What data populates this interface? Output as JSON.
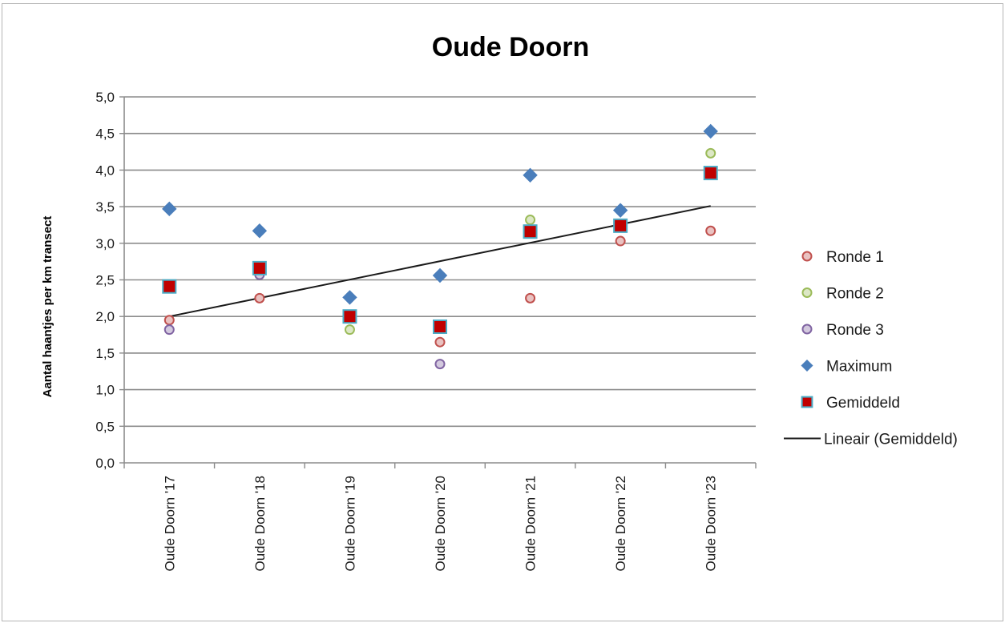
{
  "chart_data": {
    "type": "scatter",
    "title": "Oude Doorn",
    "xlabel": "",
    "ylabel": "Aantal haantjes per km transect",
    "categories": [
      "Oude Doorn '17",
      "Oude Doorn '18",
      "Oude Doorn '19",
      "Oude Doorn '20",
      "Oude Doorn '21",
      "Oude Doorn '22",
      "Oude Doorn '23"
    ],
    "ylim": [
      0,
      5
    ],
    "yticks": [
      "0,0",
      "0,5",
      "1,0",
      "1,5",
      "2,0",
      "2,5",
      "3,0",
      "3,5",
      "4,0",
      "4,5",
      "5,0"
    ],
    "grid": true,
    "legend_position": "right",
    "series": [
      {
        "name": "Ronde 1",
        "marker": "circle",
        "color": "#c0504d",
        "values": [
          1.95,
          2.25,
          null,
          1.65,
          2.25,
          3.03,
          3.17
        ]
      },
      {
        "name": "Ronde 2",
        "marker": "circle",
        "color": "#9bbb59",
        "values": [
          null,
          null,
          1.82,
          null,
          3.32,
          null,
          4.23
        ]
      },
      {
        "name": "Ronde 3",
        "marker": "circle",
        "color": "#8064a2",
        "values": [
          1.82,
          2.57,
          null,
          1.35,
          null,
          null,
          null
        ]
      },
      {
        "name": "Maximum",
        "marker": "diamond",
        "color": "#4a7ebb",
        "values": [
          3.47,
          3.17,
          2.26,
          2.56,
          3.93,
          3.45,
          4.53
        ]
      },
      {
        "name": "Gemiddeld",
        "marker": "square",
        "color": "#c00000",
        "edge": "#4bacc6",
        "values": [
          2.41,
          2.66,
          2.0,
          1.86,
          3.16,
          3.24,
          3.96
        ]
      }
    ],
    "trendline": {
      "name": "Lineair (Gemiddeld)",
      "color": "#1a1a1a",
      "from": [
        1,
        2.0
      ],
      "to": [
        7,
        3.51
      ]
    }
  }
}
